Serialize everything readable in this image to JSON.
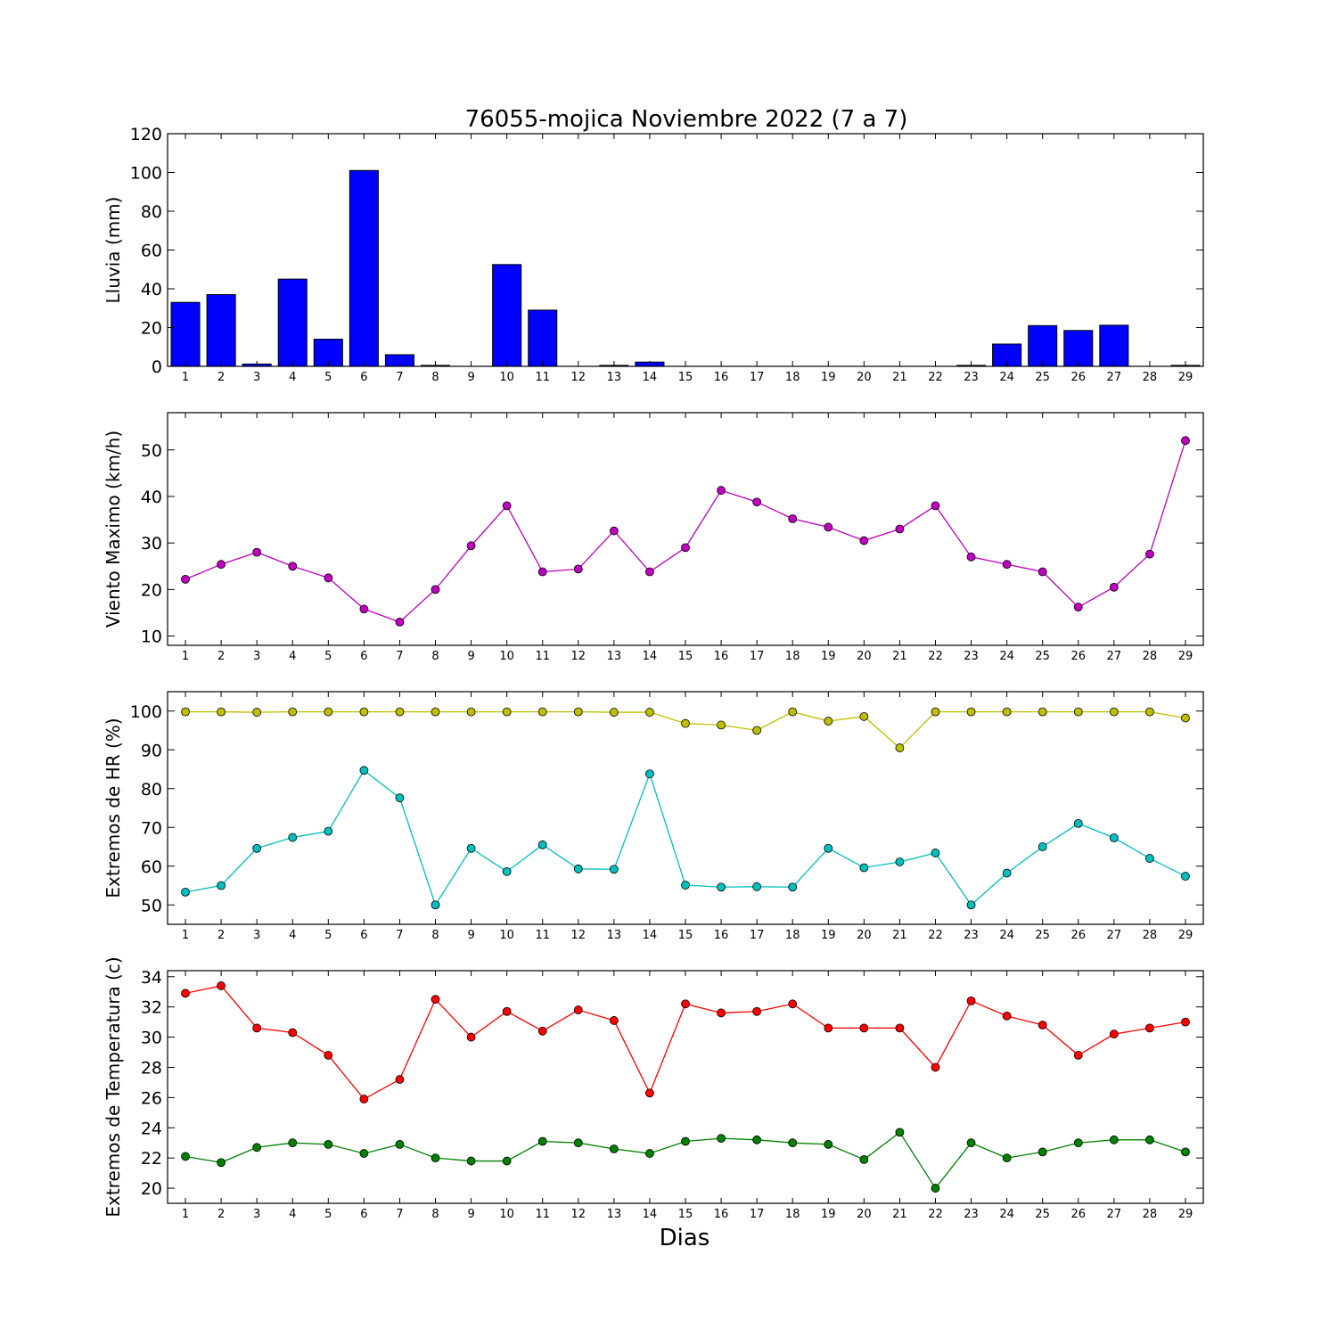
{
  "figure": {
    "title": "76055-mojica Noviembre 2022  (7 a 7)",
    "xlabel": "Dias"
  },
  "chart_data": [
    {
      "type": "bar",
      "ylabel": "Lluvia (mm)",
      "ylim": [
        0,
        120
      ],
      "yticks": [
        0,
        20,
        40,
        60,
        80,
        100,
        120
      ],
      "categories": [
        "1",
        "2",
        "3",
        "4",
        "5",
        "6",
        "7",
        "8",
        "9",
        "10",
        "11",
        "12",
        "13",
        "14",
        "15",
        "16",
        "17",
        "18",
        "19",
        "20",
        "21",
        "22",
        "23",
        "24",
        "25",
        "26",
        "27",
        "28",
        "29"
      ],
      "series": [
        {
          "color": "#0000ff",
          "values": [
            33,
            37,
            1.2,
            45,
            14,
            101,
            6,
            0.5,
            0,
            52.5,
            29,
            0,
            0.5,
            2.2,
            0,
            0,
            0,
            0,
            0,
            0,
            0,
            0,
            0.5,
            11.5,
            21,
            18.5,
            21.2,
            0,
            0.5
          ]
        }
      ]
    },
    {
      "type": "line",
      "ylabel": "Viento Maximo (km/h)",
      "ylim": [
        8,
        58
      ],
      "yticks": [
        10,
        20,
        30,
        40,
        50
      ],
      "categories": [
        "1",
        "2",
        "3",
        "4",
        "5",
        "6",
        "7",
        "8",
        "9",
        "10",
        "11",
        "12",
        "13",
        "14",
        "15",
        "16",
        "17",
        "18",
        "19",
        "20",
        "21",
        "22",
        "23",
        "24",
        "25",
        "26",
        "27",
        "28",
        "29"
      ],
      "series": [
        {
          "color": "#bf00bf",
          "values": [
            22.2,
            25.4,
            28.0,
            25.0,
            22.5,
            15.8,
            13.0,
            20.0,
            29.4,
            38.0,
            23.8,
            24.4,
            32.6,
            23.8,
            29.0,
            41.3,
            38.8,
            35.2,
            33.4,
            30.5,
            33.0,
            38.0,
            27.0,
            25.4,
            23.8,
            16.2,
            20.5,
            27.6,
            52.0
          ]
        }
      ]
    },
    {
      "type": "line",
      "ylabel": "Extremos de HR (%)",
      "ylim": [
        45,
        105
      ],
      "yticks": [
        50,
        60,
        70,
        80,
        90,
        100
      ],
      "categories": [
        "1",
        "2",
        "3",
        "4",
        "5",
        "6",
        "7",
        "8",
        "9",
        "10",
        "11",
        "12",
        "13",
        "14",
        "15",
        "16",
        "17",
        "18",
        "19",
        "20",
        "21",
        "22",
        "23",
        "24",
        "25",
        "26",
        "27",
        "28",
        "29"
      ],
      "series": [
        {
          "color": "#bfbf00",
          "values": [
            99.8,
            99.8,
            99.7,
            99.8,
            99.8,
            99.8,
            99.8,
            99.8,
            99.8,
            99.8,
            99.8,
            99.8,
            99.7,
            99.7,
            96.8,
            96.4,
            95.0,
            99.8,
            97.4,
            98.6,
            90.5,
            99.8,
            99.8,
            99.8,
            99.8,
            99.8,
            99.8,
            99.8,
            98.2
          ]
        },
        {
          "color": "#00bfbf",
          "values": [
            53.3,
            55.0,
            64.6,
            67.4,
            69.0,
            84.7,
            77.6,
            50.0,
            64.6,
            58.6,
            65.5,
            59.3,
            59.2,
            83.8,
            55.1,
            54.6,
            54.7,
            54.6,
            64.6,
            59.6,
            61.1,
            63.4,
            50.0,
            58.2,
            65.0,
            71.0,
            67.3,
            62.0,
            57.4
          ]
        }
      ]
    },
    {
      "type": "line",
      "ylabel": "Extremos de Temperatura (c)",
      "ylim": [
        19,
        34.4
      ],
      "yticks": [
        20,
        22,
        24,
        26,
        28,
        30,
        32,
        34
      ],
      "categories": [
        "1",
        "2",
        "3",
        "4",
        "5",
        "6",
        "7",
        "8",
        "9",
        "10",
        "11",
        "12",
        "13",
        "14",
        "15",
        "16",
        "17",
        "18",
        "19",
        "20",
        "21",
        "22",
        "23",
        "24",
        "25",
        "26",
        "27",
        "28",
        "29"
      ],
      "series": [
        {
          "color": "#ff0000",
          "values": [
            32.9,
            33.4,
            30.6,
            30.3,
            28.8,
            25.9,
            27.2,
            32.5,
            30.0,
            31.7,
            30.4,
            31.8,
            31.1,
            26.3,
            32.2,
            31.6,
            31.7,
            32.2,
            30.6,
            30.6,
            30.6,
            28.0,
            32.4,
            31.4,
            30.8,
            28.8,
            30.2,
            30.6,
            31.0
          ]
        },
        {
          "color": "#008000",
          "values": [
            22.1,
            21.7,
            22.7,
            23.0,
            22.9,
            22.3,
            22.9,
            22.0,
            21.8,
            21.8,
            23.1,
            23.0,
            22.6,
            22.3,
            23.1,
            23.3,
            23.2,
            23.0,
            22.9,
            21.9,
            23.7,
            20.0,
            23.0,
            22.0,
            22.4,
            23.0,
            23.2,
            23.2,
            22.4
          ]
        }
      ]
    }
  ]
}
